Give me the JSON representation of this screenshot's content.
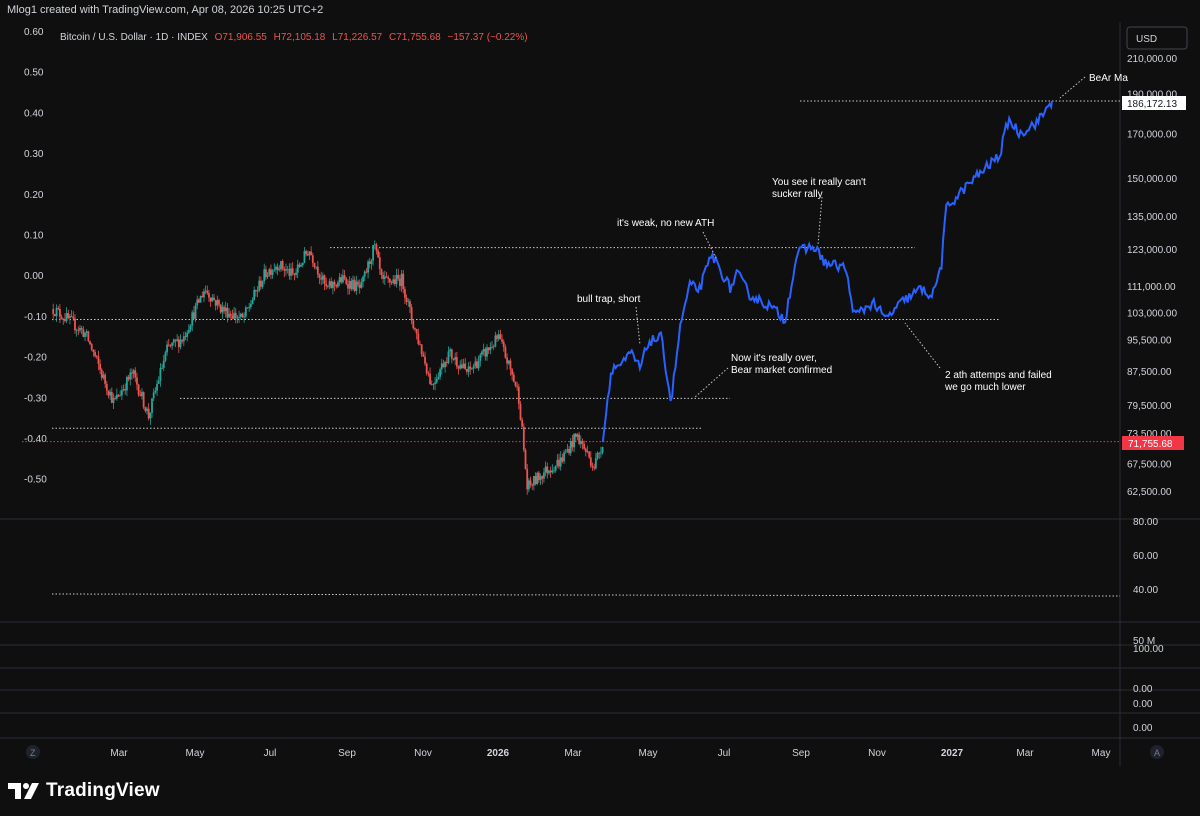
{
  "header": {
    "credit": "Mlog1 created with TradingView.com, Apr 08, 2026 10:25 UTC+2"
  },
  "legend": {
    "symbol": "Bitcoin / U.S. Dollar · 1D · INDEX",
    "open": "O71,906.55",
    "high": "H72,105.18",
    "low": "L71,226.57",
    "close": "C71,755.68",
    "change": "−157.37 (−0.22%)"
  },
  "currency_button": "USD",
  "price_labels": {
    "last": "71,755.68",
    "target": "186,172.13"
  },
  "annotations": {
    "bull_trap": "bull trap, short",
    "weak": "it's weak, no new ATH",
    "sucker_line1": "You see it really can't",
    "sucker_line2": "sucker rally",
    "over_line1": "Now it's really over,",
    "over_line2": "Bear market confirmed",
    "ath_line1": "2 ath attemps and failed",
    "ath_line2": "we go much lower",
    "bear": "BeAr Ma"
  },
  "left_axis": {
    "ticks": [
      "0.60",
      "0.50",
      "0.40",
      "0.30",
      "0.20",
      "0.10",
      "0.00",
      "-0.10",
      "-0.20",
      "-0.30",
      "-0.40",
      "-0.50"
    ]
  },
  "right_axis": {
    "ticks": [
      "210,000.00",
      "190,000.00",
      "170,000.00",
      "150,000.00",
      "135,000.00",
      "123,000.00",
      "111,000.00",
      "103,000.00",
      "95,500.00",
      "87,500.00",
      "79,500.00",
      "73,500.00",
      "67,500.00",
      "62,500.00"
    ]
  },
  "sub_panes": {
    "pane1_ticks": [
      "80.00",
      "60.00",
      "40.00"
    ],
    "pane2_ticks": [
      "50 M"
    ],
    "pane3_ticks": [
      "100.00",
      "0.00"
    ],
    "pane4_ticks": [
      "0.00"
    ],
    "pane5_ticks": [
      "0.00"
    ]
  },
  "time_axis": {
    "labels": [
      "Mar",
      "May",
      "Jul",
      "Sep",
      "Nov",
      "2026",
      "Mar",
      "May",
      "Jul",
      "Sep",
      "Nov",
      "2027",
      "Mar",
      "May"
    ],
    "z_button": "Z",
    "a_button": "A"
  },
  "footer": {
    "brand": "TradingView"
  },
  "colors": {
    "background": "#0f0f0f",
    "up_candle": "#26a69a",
    "down_candle": "#ef5350",
    "projection": "#2962ff",
    "last_price": "#f23645"
  },
  "chart_data": {
    "type": "line",
    "title": "Bitcoin / U.S. Dollar · 1D · INDEX",
    "y_scale": "log",
    "y_range_usd": [
      60000,
      215000
    ],
    "x_range": [
      "2025-01-15",
      "2027-06-15"
    ],
    "series": [
      {
        "name": "Bitcoin / U.S. Dollar",
        "style": "candles",
        "points": [
          [
            "2025-01-20",
            104000
          ],
          [
            "2025-02-01",
            101000
          ],
          [
            "2025-02-15",
            97000
          ],
          [
            "2025-03-01",
            86000
          ],
          [
            "2025-03-10",
            80000
          ],
          [
            "2025-03-25",
            87000
          ],
          [
            "2025-04-07",
            77000
          ],
          [
            "2025-04-22",
            93000
          ],
          [
            "2025-05-05",
            96000
          ],
          [
            "2025-05-22",
            110000
          ],
          [
            "2025-06-05",
            104000
          ],
          [
            "2025-06-22",
            101000
          ],
          [
            "2025-07-10",
            115000
          ],
          [
            "2025-07-20",
            118000
          ],
          [
            "2025-08-02",
            114000
          ],
          [
            "2025-08-14",
            123000
          ],
          [
            "2025-08-28",
            110000
          ],
          [
            "2025-09-10",
            113000
          ],
          [
            "2025-09-25",
            110000
          ],
          [
            "2025-10-06",
            124000
          ],
          [
            "2025-10-12",
            112000
          ],
          [
            "2025-10-28",
            113000
          ],
          [
            "2025-11-05",
            101000
          ],
          [
            "2025-11-21",
            84000
          ],
          [
            "2025-12-05",
            92000
          ],
          [
            "2025-12-20",
            87000
          ],
          [
            "2026-01-06",
            93000
          ],
          [
            "2026-01-14",
            96000
          ],
          [
            "2026-01-30",
            82000
          ],
          [
            "2026-02-06",
            63000
          ],
          [
            "2026-02-20",
            66000
          ],
          [
            "2026-03-05",
            68000
          ],
          [
            "2026-03-18",
            73000
          ],
          [
            "2026-04-01",
            67000
          ],
          [
            "2026-04-08",
            71756
          ]
        ]
      },
      {
        "name": "Projection",
        "style": "line",
        "points": [
          [
            "2026-04-08",
            71756
          ],
          [
            "2026-04-15",
            88000
          ],
          [
            "2026-04-25",
            89500
          ],
          [
            "2026-05-01",
            92000
          ],
          [
            "2026-05-08",
            88000
          ],
          [
            "2026-05-15",
            95000
          ],
          [
            "2026-05-25",
            96000
          ],
          [
            "2026-06-02",
            80000
          ],
          [
            "2026-06-10",
            100000
          ],
          [
            "2026-06-17",
            111000
          ],
          [
            "2026-06-25",
            110000
          ],
          [
            "2026-07-05",
            121000
          ],
          [
            "2026-07-20",
            110000
          ],
          [
            "2026-07-25",
            115000
          ],
          [
            "2026-08-05",
            108000
          ],
          [
            "2026-08-20",
            105000
          ],
          [
            "2026-09-02",
            101000
          ],
          [
            "2026-09-12",
            122000
          ],
          [
            "2026-09-25",
            124000
          ],
          [
            "2026-10-05",
            118000
          ],
          [
            "2026-10-20",
            117000
          ],
          [
            "2026-10-28",
            102000
          ],
          [
            "2026-11-12",
            106000
          ],
          [
            "2026-11-22",
            101000
          ],
          [
            "2026-12-05",
            106000
          ],
          [
            "2026-12-20",
            110000
          ],
          [
            "2026-12-30",
            108000
          ],
          [
            "2027-01-06",
            118000
          ],
          [
            "2027-01-10",
            138000
          ],
          [
            "2027-01-25",
            146000
          ],
          [
            "2027-02-10",
            154000
          ],
          [
            "2027-02-22",
            160000
          ],
          [
            "2027-03-01",
            177000
          ],
          [
            "2027-03-10",
            170000
          ],
          [
            "2027-03-25",
            176000
          ],
          [
            "2027-04-05",
            186172
          ]
        ]
      }
    ],
    "level_lines_usd": [
      123500,
      101000,
      81000,
      74500,
      186172
    ],
    "last_price_usd": 71755.68
  }
}
